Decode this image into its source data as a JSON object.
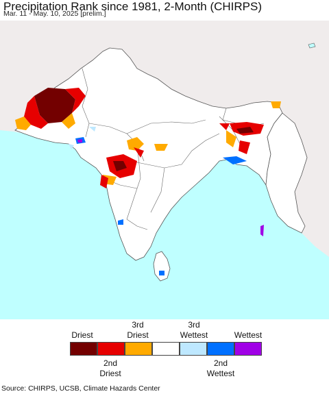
{
  "title": "Precipitation Rank since 1981, 2-Month (CHIRPS)",
  "subtitle": "Mar. 11 - May. 10, 2025 [prelim.]",
  "colors": {
    "land_other": "#f0ecec",
    "ocean": "#bfffff",
    "study_land": "#ffffff",
    "border": "#555555"
  },
  "legend": {
    "top_labels": [
      "Driest",
      "3rd\nDriest",
      "3rd\nWettest",
      "Wettest"
    ],
    "bottom_labels": [
      "2nd\nDriest",
      "2nd\nWettest"
    ],
    "colors": [
      "#730000",
      "#e60000",
      "#ffaa00",
      "#ffffff",
      "#bee8ff",
      "#0070ff",
      "#a000e6"
    ]
  },
  "source": "Source: CHIRPS, UCSB, Climate Hazards Center"
}
